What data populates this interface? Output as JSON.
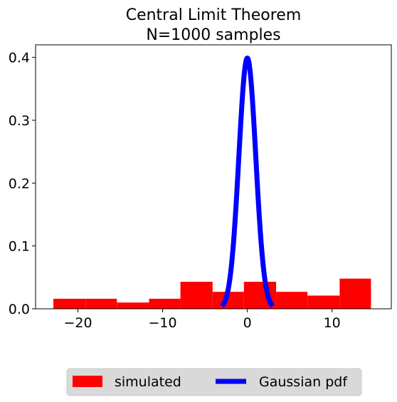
{
  "chart_data": {
    "type": "bar",
    "title_lines": [
      "Central Limit Theorem",
      "N=1000 samples"
    ],
    "xlim": [
      -25,
      17
    ],
    "ylim": [
      0,
      0.42
    ],
    "xticks": [
      -20,
      -10,
      0,
      10
    ],
    "xtick_labels": [
      "−20",
      "−10",
      "0",
      "10"
    ],
    "yticks": [
      0.0,
      0.1,
      0.2,
      0.3,
      0.4
    ],
    "ytick_labels": [
      "0.0",
      "0.1",
      "0.2",
      "0.3",
      "0.4"
    ],
    "grid": false,
    "legend_placement": "below plot, centered",
    "series": [
      {
        "name": "simulated",
        "kind": "histogram",
        "color": "#ff0000",
        "bin_edges": [
          -22.9,
          -19.1,
          -15.4,
          -11.6,
          -7.9,
          -4.1,
          -0.4,
          3.4,
          7.1,
          10.9,
          14.6
        ],
        "values": [
          0.016,
          0.016,
          0.01,
          0.016,
          0.043,
          0.027,
          0.043,
          0.027,
          0.021,
          0.048
        ]
      },
      {
        "name": "Gaussian pdf",
        "kind": "line",
        "color": "#0000ff",
        "x_range": [
          -3,
          3
        ],
        "mean": 0,
        "std": 1
      }
    ]
  }
}
